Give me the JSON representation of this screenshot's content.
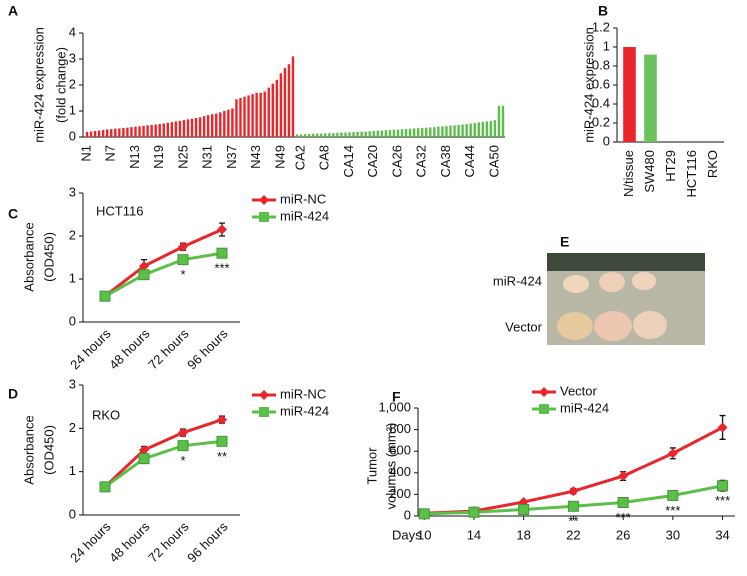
{
  "chart_data": [
    {
      "type": "bar",
      "panel": "A",
      "y_label": [
        "miR-424 expression",
        "(fold change)"
      ],
      "ylim": [
        0,
        4
      ],
      "yticks": [
        0,
        1,
        2,
        3,
        4
      ],
      "groups": [
        {
          "color": "#e8262b",
          "categories": [
            "N1",
            null,
            null,
            null,
            null,
            null,
            "N7",
            null,
            null,
            null,
            null,
            null,
            "N13",
            null,
            null,
            null,
            null,
            null,
            "N19",
            null,
            null,
            null,
            null,
            null,
            "N25",
            null,
            null,
            null,
            null,
            null,
            "N31",
            null,
            null,
            null,
            null,
            null,
            "N37",
            null,
            null,
            null,
            null,
            null,
            "N43",
            null,
            null,
            null,
            null,
            null,
            "N49",
            null,
            null,
            null
          ],
          "values": [
            0.2,
            0.21,
            0.23,
            0.25,
            0.27,
            0.29,
            0.3,
            0.32,
            0.33,
            0.35,
            0.36,
            0.38,
            0.4,
            0.41,
            0.43,
            0.45,
            0.46,
            0.48,
            0.5,
            0.52,
            0.55,
            0.57,
            0.6,
            0.62,
            0.65,
            0.68,
            0.7,
            0.73,
            0.76,
            0.8,
            0.84,
            0.88,
            0.9,
            0.95,
            1.0,
            1.05,
            1.1,
            1.45,
            1.5,
            1.55,
            1.6,
            1.65,
            1.7,
            1.7,
            1.75,
            1.9,
            2.05,
            2.2,
            2.45,
            2.65,
            2.8,
            3.1
          ]
        },
        {
          "color": "#5cbf4a",
          "categories": [
            null,
            "CA2",
            null,
            null,
            null,
            null,
            null,
            "CA8",
            null,
            null,
            null,
            null,
            null,
            "CA14",
            null,
            null,
            null,
            null,
            null,
            "CA20",
            null,
            null,
            null,
            null,
            null,
            "CA26",
            null,
            null,
            null,
            null,
            null,
            "CA32",
            null,
            null,
            null,
            null,
            null,
            "CA38",
            null,
            null,
            null,
            null,
            null,
            "CA44",
            null,
            null,
            null,
            null,
            null,
            "CA50",
            null,
            null
          ],
          "values": [
            0.1,
            0.1,
            0.11,
            0.12,
            0.12,
            0.13,
            0.13,
            0.14,
            0.15,
            0.15,
            0.16,
            0.17,
            0.17,
            0.18,
            0.19,
            0.2,
            0.2,
            0.21,
            0.22,
            0.23,
            0.24,
            0.25,
            0.26,
            0.27,
            0.28,
            0.29,
            0.3,
            0.31,
            0.32,
            0.33,
            0.34,
            0.35,
            0.36,
            0.37,
            0.38,
            0.4,
            0.41,
            0.42,
            0.44,
            0.45,
            0.46,
            0.48,
            0.5,
            0.52,
            0.54,
            0.56,
            0.58,
            0.6,
            0.62,
            0.65,
            1.2,
            1.2
          ]
        }
      ]
    },
    {
      "type": "bar",
      "panel": "B",
      "y_label": [
        "miR-424 expression"
      ],
      "ylim": [
        0,
        1.2
      ],
      "yticks": [
        0,
        0.2,
        0.4,
        0.6,
        0.8,
        1,
        1.2
      ],
      "groups": [
        {
          "categories": [
            "N/tissue",
            "SW480",
            "HT29",
            "HCT116",
            "RKO"
          ],
          "values": [
            1,
            0.92,
            0,
            0,
            0
          ],
          "colors": [
            "#e8262b",
            "#6cc25a",
            "#6cc25a",
            "#6cc25a",
            "#6cc25a"
          ]
        }
      ]
    },
    {
      "type": "line",
      "panel": "C",
      "subtitle": "HCT116",
      "y_label": [
        "Absorbance",
        "(OD450)"
      ],
      "ylim": [
        0,
        3
      ],
      "yticks": [
        0,
        1,
        2,
        3
      ],
      "categories": [
        "24 hours",
        "48 hours",
        "72 hours",
        "96 hours"
      ],
      "series": [
        {
          "name": "miR-NC",
          "color": "#e8262b",
          "marker": "diamond",
          "values": [
            0.6,
            1.3,
            1.75,
            2.15
          ],
          "errors": [
            0.05,
            0.15,
            0.08,
            0.15
          ]
        },
        {
          "name": "miR-424",
          "color": "#5cbf4a",
          "marker": "square",
          "values": [
            0.6,
            1.1,
            1.45,
            1.6
          ],
          "errors": [
            0.05,
            0.1,
            0.1,
            0.08
          ]
        }
      ],
      "annotations": [
        null,
        null,
        "*",
        "***"
      ]
    },
    {
      "type": "line",
      "panel": "D",
      "subtitle": "RKO",
      "y_label": [
        "Absorbance",
        "(OD450)"
      ],
      "ylim": [
        0,
        3
      ],
      "yticks": [
        0,
        1,
        2,
        3
      ],
      "categories": [
        "24 hours",
        "48 hours",
        "72 hours",
        "96 hours"
      ],
      "series": [
        {
          "name": "miR-NC",
          "color": "#e8262b",
          "marker": "diamond",
          "values": [
            0.65,
            1.5,
            1.9,
            2.2
          ],
          "errors": [
            0.05,
            0.08,
            0.08,
            0.08
          ]
        },
        {
          "name": "miR-424",
          "color": "#5cbf4a",
          "marker": "square",
          "values": [
            0.65,
            1.3,
            1.6,
            1.7
          ],
          "errors": [
            0.05,
            0.08,
            0.08,
            0.08
          ]
        }
      ],
      "annotations": [
        null,
        null,
        "*",
        "**"
      ]
    },
    {
      "type": "image",
      "panel": "E",
      "labels": [
        "miR-424",
        "Vector"
      ]
    },
    {
      "type": "line",
      "panel": "F",
      "y_label": [
        "Tumor",
        "volumes (mm³)"
      ],
      "x_label": "Days",
      "x": [
        10,
        14,
        18,
        22,
        26,
        30,
        34
      ],
      "xlim": [
        9.5,
        35
      ],
      "xticks": [
        10,
        14,
        18,
        22,
        26,
        30,
        34
      ],
      "ylim": [
        0,
        1000
      ],
      "yticks": [
        0,
        200,
        400,
        600,
        800,
        {
          "value": 1000,
          "label": "1,000"
        }
      ],
      "series": [
        {
          "name": "Vector",
          "color": "#e8262b",
          "marker": "diamond",
          "values": [
            25,
            45,
            130,
            230,
            370,
            580,
            820
          ],
          "errors": [
            8,
            10,
            15,
            25,
            40,
            50,
            110
          ]
        },
        {
          "name": "miR-424",
          "color": "#5cbf4a",
          "marker": "square",
          "values": [
            20,
            35,
            60,
            90,
            125,
            190,
            280
          ],
          "errors": [
            8,
            8,
            10,
            15,
            20,
            25,
            50
          ]
        }
      ],
      "annotations": [
        null,
        null,
        null,
        "**",
        "***",
        "***",
        "***"
      ]
    }
  ]
}
